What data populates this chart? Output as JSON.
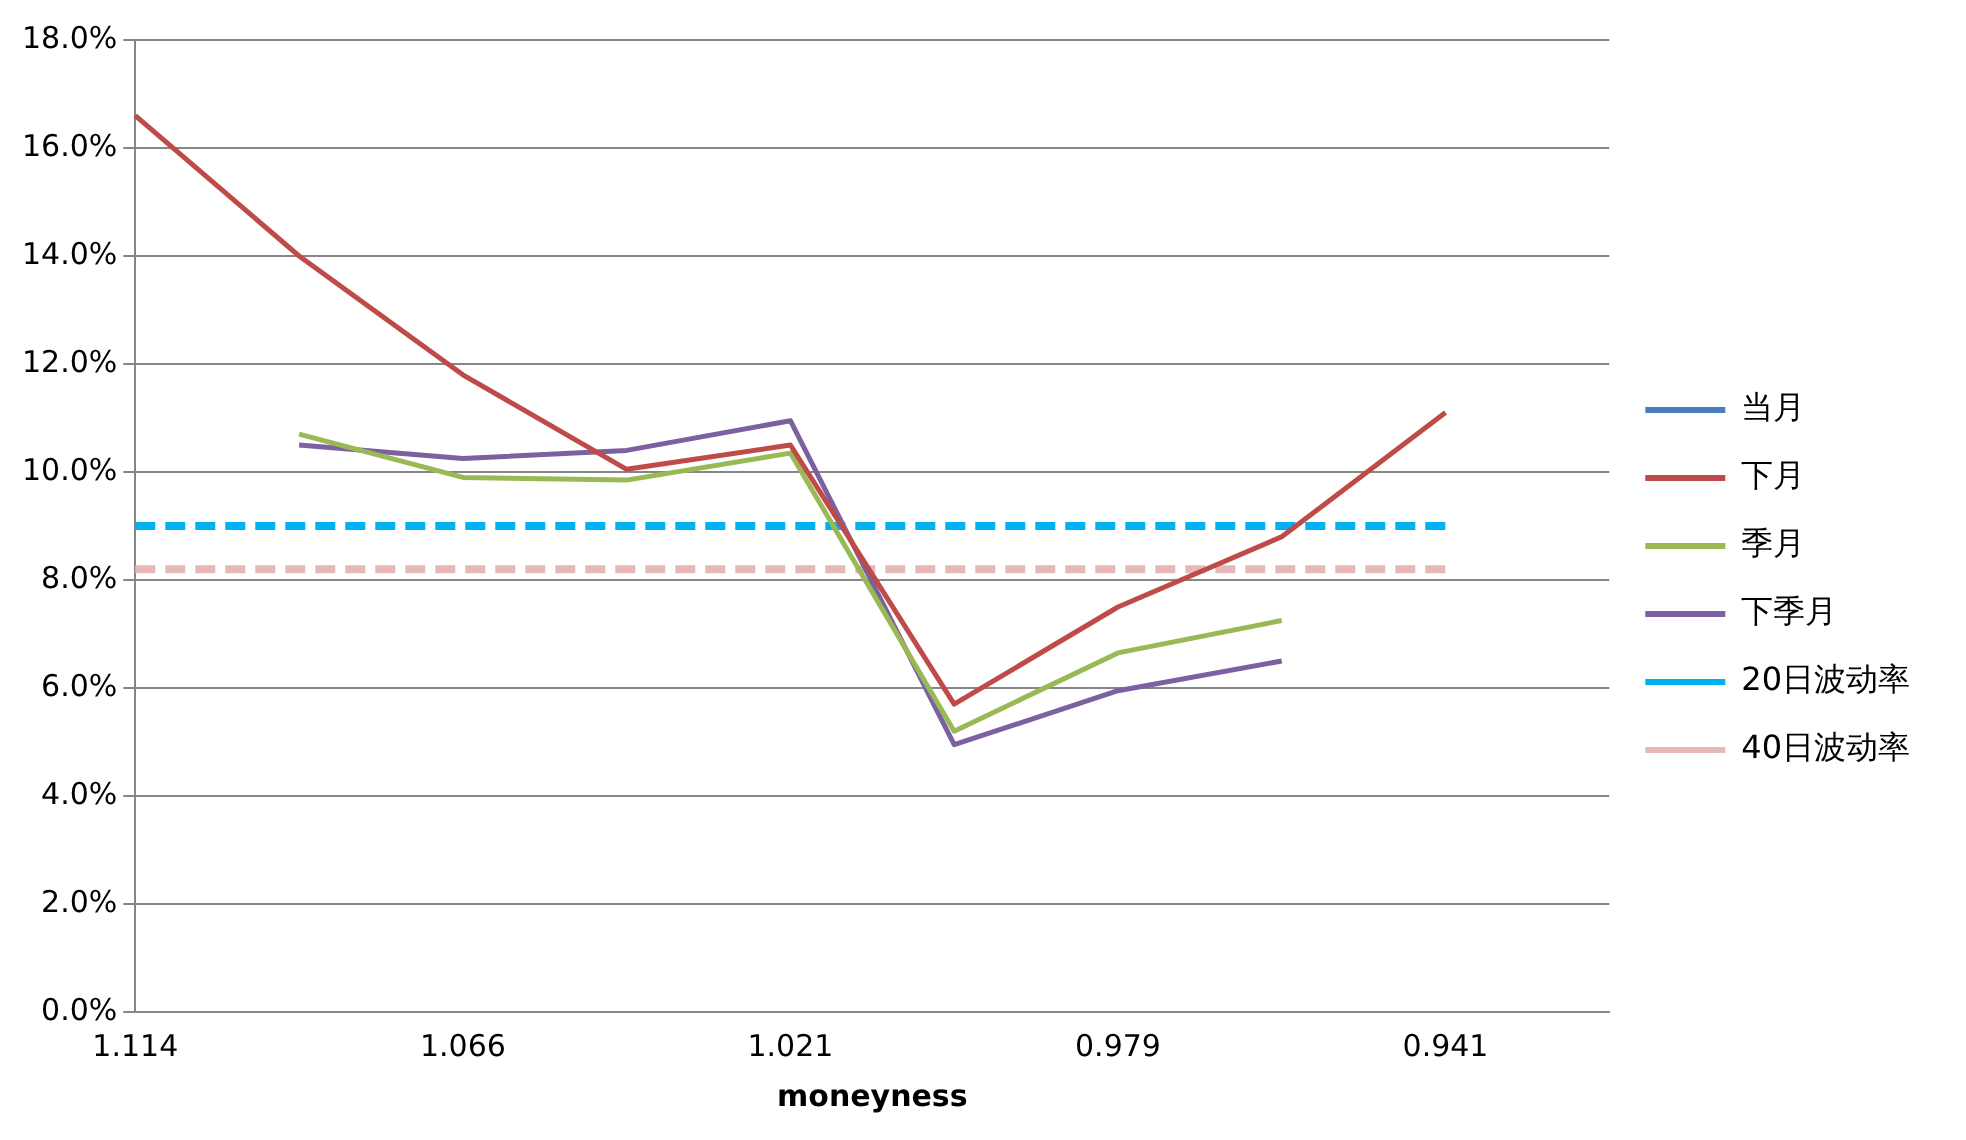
{
  "chart_data": {
    "type": "line",
    "xlabel": "moneyness",
    "categories": [
      "1.114",
      null,
      "1.066",
      null,
      "1.021",
      null,
      "0.979",
      null,
      "0.941",
      null
    ],
    "series": [
      {
        "name": "当月",
        "color": "#4a7ebb",
        "values": [
          null,
          null,
          null,
          null,
          null,
          null,
          null,
          null,
          null,
          null
        ]
      },
      {
        "name": "下月",
        "color": "#be4b48",
        "values": [
          16.6,
          14.0,
          11.8,
          10.05,
          10.5,
          5.7,
          7.5,
          8.8,
          11.1,
          null
        ]
      },
      {
        "name": "季月",
        "color": "#98b954",
        "values": [
          null,
          10.7,
          9.9,
          9.85,
          10.35,
          5.2,
          6.65,
          7.25,
          null,
          null
        ]
      },
      {
        "name": "下季月",
        "color": "#7d60a0",
        "values": [
          null,
          10.5,
          10.25,
          10.4,
          10.95,
          4.95,
          5.95,
          6.5,
          null,
          null
        ]
      },
      {
        "name": "20日波动率",
        "color": "#00b0f0",
        "line_style": "dashed",
        "values": [
          9.0,
          9.0,
          9.0,
          9.0,
          9.0,
          9.0,
          9.0,
          9.0,
          9.0,
          null
        ]
      },
      {
        "name": "40日波动率",
        "color": "#e6b9b8",
        "line_style": "dashed",
        "values": [
          8.2,
          8.2,
          8.2,
          8.2,
          8.2,
          8.2,
          8.2,
          8.2,
          8.2,
          null
        ]
      }
    ],
    "ylim": [
      0,
      18
    ],
    "yticks": [
      {
        "value": 0,
        "label": "0.0%"
      },
      {
        "value": 2,
        "label": "2.0%"
      },
      {
        "value": 4,
        "label": "4.0%"
      },
      {
        "value": 6,
        "label": "6.0%"
      },
      {
        "value": 8,
        "label": "8.0%"
      },
      {
        "value": 10,
        "label": "10.0%"
      },
      {
        "value": 12,
        "label": "12.0%"
      },
      {
        "value": 14,
        "label": "14.0%"
      },
      {
        "value": 16,
        "label": "16.0%"
      },
      {
        "value": 18,
        "label": "18.0%"
      }
    ],
    "grid": "y",
    "legend": "right",
    "marker": "none",
    "line_style": "solid"
  }
}
